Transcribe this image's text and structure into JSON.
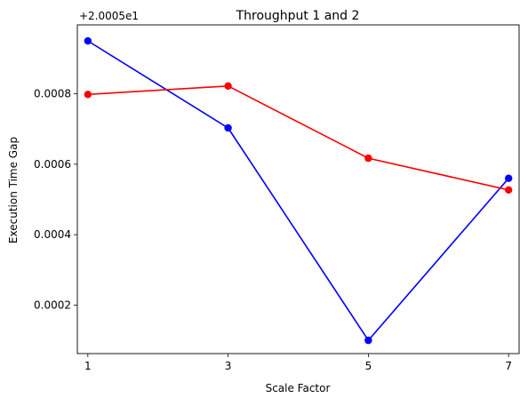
{
  "chart_data": {
    "type": "line",
    "title": "Throughput 1 and 2",
    "xlabel": "Scale Factor",
    "ylabel": "Execution Time Gap",
    "offset_label": "+2.0005e1",
    "x": [
      1,
      3,
      5,
      7
    ],
    "x_ticks": [
      "1",
      "3",
      "5",
      "7"
    ],
    "y_ticks": [
      "0.0002",
      "0.0004",
      "0.0006",
      "0.0008"
    ],
    "xlim": [
      0.85,
      7.15
    ],
    "ylim": [
      6.25e-05,
      0.0009955
    ],
    "grid": false,
    "legend": "none",
    "series": [
      {
        "color": "#0000ff",
        "values": [
          0.00095,
          0.000703,
          0.0001,
          0.00056
        ]
      },
      {
        "color": "#ff0000",
        "values": [
          0.000798,
          0.000822,
          0.000617,
          0.000527
        ]
      }
    ]
  }
}
